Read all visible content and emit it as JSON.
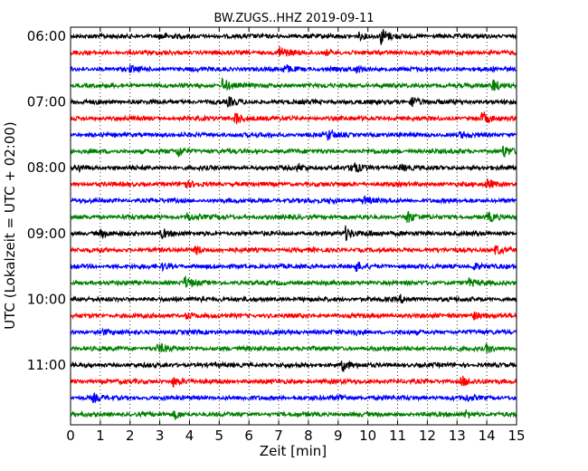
{
  "chart_data": {
    "type": "line",
    "title": "BW.ZUGS..HHZ 2019-09-11",
    "xlabel": "Zeit  [min]",
    "ylabel": "UTC (Lokalzeit = UTC + 02:00)",
    "xlim": [
      0,
      15
    ],
    "x_ticks": [
      "0",
      "1",
      "2",
      "3",
      "4",
      "5",
      "6",
      "7",
      "8",
      "9",
      "10",
      "11",
      "12",
      "13",
      "14",
      "15"
    ],
    "y_ticks": [
      "06:00",
      "07:00",
      "08:00",
      "09:00",
      "10:00",
      "11:00"
    ],
    "grid": "vertical-dotted",
    "trace_colors": [
      "#000000",
      "#ff0000",
      "#0000ff",
      "#008000"
    ],
    "trace_count": 24,
    "trace_interval_min": 15,
    "series": [
      {
        "start": "06:00",
        "color": "#000000",
        "events": [
          [
            3.0,
            0.3
          ],
          [
            9.7,
            0.4
          ],
          [
            10.45,
            1.0
          ]
        ]
      },
      {
        "start": "06:15",
        "color": "#ff0000",
        "events": [
          [
            7.0,
            0.9
          ],
          [
            8.6,
            0.3
          ]
        ]
      },
      {
        "start": "06:30",
        "color": "#0000ff",
        "events": [
          [
            2.0,
            0.3
          ],
          [
            7.2,
            0.5
          ],
          [
            9.6,
            0.35
          ]
        ]
      },
      {
        "start": "06:45",
        "color": "#008000",
        "events": [
          [
            5.1,
            0.85
          ],
          [
            14.2,
            0.8
          ]
        ]
      },
      {
        "start": "07:00",
        "color": "#000000",
        "events": [
          [
            5.3,
            0.5
          ],
          [
            11.45,
            0.8
          ]
        ]
      },
      {
        "start": "07:15",
        "color": "#ff0000",
        "events": [
          [
            5.55,
            0.9
          ],
          [
            13.85,
            0.7
          ]
        ]
      },
      {
        "start": "07:30",
        "color": "#0000ff",
        "events": [
          [
            8.65,
            0.6
          ],
          [
            13.1,
            0.3
          ]
        ]
      },
      {
        "start": "07:45",
        "color": "#008000",
        "events": [
          [
            3.6,
            0.7
          ],
          [
            14.55,
            0.7
          ]
        ]
      },
      {
        "start": "08:00",
        "color": "#000000",
        "events": [
          [
            0.25,
            0.35
          ],
          [
            7.65,
            0.4
          ],
          [
            9.45,
            0.8
          ],
          [
            11.1,
            0.35
          ]
        ]
      },
      {
        "start": "08:15",
        "color": "#ff0000",
        "events": [
          [
            3.8,
            0.5
          ],
          [
            14.0,
            0.6
          ]
        ]
      },
      {
        "start": "08:30",
        "color": "#0000ff",
        "events": [
          [
            8.7,
            0.25
          ],
          [
            9.85,
            0.5
          ]
        ]
      },
      {
        "start": "08:45",
        "color": "#008000",
        "events": [
          [
            3.9,
            0.55
          ],
          [
            11.3,
            0.8
          ],
          [
            14.05,
            0.5
          ]
        ]
      },
      {
        "start": "09:00",
        "color": "#000000",
        "events": [
          [
            1.0,
            0.4
          ],
          [
            3.05,
            0.6
          ],
          [
            9.25,
            0.75
          ],
          [
            10.0,
            0.35
          ]
        ]
      },
      {
        "start": "09:15",
        "color": "#ff0000",
        "events": [
          [
            4.2,
            0.6
          ],
          [
            14.3,
            0.6
          ]
        ]
      },
      {
        "start": "09:30",
        "color": "#0000ff",
        "events": [
          [
            3.1,
            0.35
          ],
          [
            9.6,
            0.5
          ],
          [
            13.55,
            0.4
          ]
        ]
      },
      {
        "start": "09:45",
        "color": "#008000",
        "events": [
          [
            3.85,
            0.7
          ],
          [
            13.4,
            0.4
          ]
        ]
      },
      {
        "start": "10:00",
        "color": "#000000",
        "events": [
          [
            4.35,
            0.45
          ],
          [
            11.1,
            0.4
          ]
        ]
      },
      {
        "start": "10:15",
        "color": "#ff0000",
        "events": [
          [
            3.9,
            0.45
          ],
          [
            13.5,
            0.6
          ]
        ]
      },
      {
        "start": "10:30",
        "color": "#0000ff",
        "events": [
          [
            1.05,
            0.3
          ],
          [
            9.45,
            0.35
          ]
        ]
      },
      {
        "start": "10:45",
        "color": "#008000",
        "events": [
          [
            2.95,
            0.6
          ],
          [
            14.0,
            0.55
          ]
        ]
      },
      {
        "start": "11:00",
        "color": "#000000",
        "events": [
          [
            9.15,
            0.7
          ]
        ]
      },
      {
        "start": "11:15",
        "color": "#ff0000",
        "events": [
          [
            3.45,
            0.55
          ],
          [
            13.15,
            0.65
          ]
        ]
      },
      {
        "start": "11:30",
        "color": "#0000ff",
        "events": [
          [
            0.75,
            0.4
          ],
          [
            9.0,
            0.45
          ],
          [
            13.3,
            0.35
          ]
        ]
      },
      {
        "start": "11:45",
        "color": "#008000",
        "events": [
          [
            3.5,
            0.5
          ],
          [
            13.3,
            0.5
          ]
        ]
      }
    ]
  }
}
